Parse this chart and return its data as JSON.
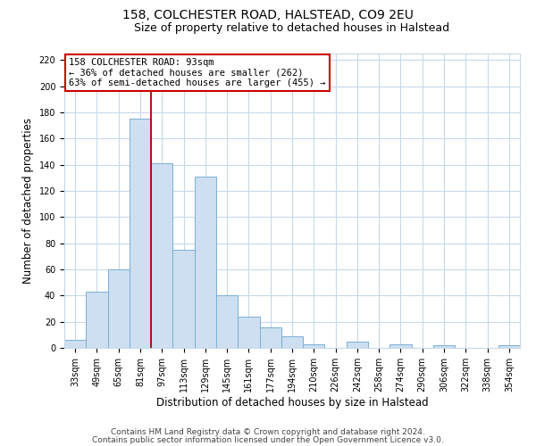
{
  "title": "158, COLCHESTER ROAD, HALSTEAD, CO9 2EU",
  "subtitle": "Size of property relative to detached houses in Halstead",
  "xlabel": "Distribution of detached houses by size in Halstead",
  "ylabel": "Number of detached properties",
  "bar_labels": [
    "33sqm",
    "49sqm",
    "65sqm",
    "81sqm",
    "97sqm",
    "113sqm",
    "129sqm",
    "145sqm",
    "161sqm",
    "177sqm",
    "194sqm",
    "210sqm",
    "226sqm",
    "242sqm",
    "258sqm",
    "274sqm",
    "290sqm",
    "306sqm",
    "322sqm",
    "338sqm",
    "354sqm"
  ],
  "bar_values": [
    6,
    43,
    60,
    175,
    141,
    75,
    131,
    40,
    24,
    16,
    9,
    3,
    0,
    5,
    0,
    3,
    0,
    2,
    0,
    0,
    2
  ],
  "bar_color": "#cddff0",
  "bar_edge_color": "#7aafd4",
  "vline_color": "#aa0000",
  "annotation_title": "158 COLCHESTER ROAD: 93sqm",
  "annotation_line1": "← 36% of detached houses are smaller (262)",
  "annotation_line2": "63% of semi-detached houses are larger (455) →",
  "annotation_box_color": "#ffffff",
  "annotation_box_edge": "#cc0000",
  "ylim": [
    0,
    225
  ],
  "yticks": [
    0,
    20,
    40,
    60,
    80,
    100,
    120,
    140,
    160,
    180,
    200,
    220
  ],
  "footnote1": "Contains HM Land Registry data © Crown copyright and database right 2024.",
  "footnote2": "Contains public sector information licensed under the Open Government Licence v3.0.",
  "bg_color": "#ffffff",
  "grid_color": "#c8d8e8",
  "title_fontsize": 10,
  "subtitle_fontsize": 9,
  "axis_label_fontsize": 8.5,
  "tick_fontsize": 7,
  "annotation_fontsize": 7.5,
  "footnote_fontsize": 6.5
}
